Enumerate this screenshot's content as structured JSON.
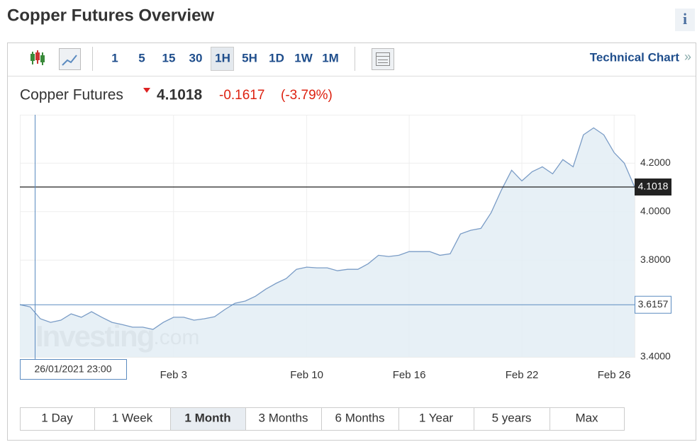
{
  "header": {
    "title": "Copper Futures Overview",
    "info_icon": "i"
  },
  "toolbar": {
    "intervals": [
      "1",
      "5",
      "15",
      "30",
      "1H",
      "5H",
      "1D",
      "1W",
      "1M"
    ],
    "active_interval": "1H",
    "technical_link": "Technical Chart"
  },
  "quote": {
    "name": "Copper Futures",
    "last": "4.1018",
    "change": "-0.1617",
    "change_pct": "(-3.79%)"
  },
  "chart_data": {
    "type": "line",
    "color": "#7a9cc6",
    "area_color": "#e3edf5",
    "categories": [
      null,
      null,
      null,
      null,
      null,
      null,
      null,
      null,
      null,
      null,
      null,
      null,
      null,
      null,
      null,
      "Feb 3",
      null,
      null,
      null,
      null,
      null,
      null,
      null,
      null,
      null,
      null,
      null,
      null,
      "Feb 10",
      null,
      null,
      null,
      null,
      null,
      null,
      null,
      null,
      null,
      "Feb 16",
      null,
      null,
      null,
      null,
      null,
      null,
      null,
      null,
      null,
      null,
      "Feb 22",
      null,
      null,
      null,
      null,
      null,
      null,
      null,
      null,
      "Feb 26",
      null,
      null
    ],
    "values": [
      3.616,
      3.607,
      3.558,
      3.543,
      3.552,
      3.578,
      3.564,
      3.587,
      3.564,
      3.543,
      3.534,
      3.523,
      3.523,
      3.514,
      3.543,
      3.564,
      3.564,
      3.552,
      3.558,
      3.566,
      3.596,
      3.622,
      3.631,
      3.651,
      3.68,
      3.704,
      3.724,
      3.762,
      3.771,
      3.768,
      3.768,
      3.756,
      3.762,
      3.762,
      3.785,
      3.82,
      3.815,
      3.82,
      3.835,
      3.835,
      3.835,
      3.82,
      3.826,
      3.908,
      3.923,
      3.931,
      3.996,
      4.089,
      4.171,
      4.127,
      4.165,
      4.185,
      4.156,
      4.215,
      4.185,
      4.317,
      4.346,
      4.317,
      4.244,
      4.2,
      4.102
    ],
    "ylim": [
      3.4,
      4.4
    ],
    "yticks": [
      {
        "value": 3.4,
        "label": "3.4000"
      },
      {
        "value": 3.8,
        "label": "3.8000"
      },
      {
        "value": 4.0,
        "label": "4.0000"
      },
      {
        "value": 4.2,
        "label": "4.2000"
      }
    ],
    "grid": true,
    "last_price_line": 4.1018,
    "crosshair": {
      "y": 3.6157,
      "x_label": "26/01/2021 23:00"
    },
    "watermark": {
      "brand": "Investing",
      "suffix": ".com"
    }
  },
  "ranges": {
    "buttons": [
      "1 Day",
      "1 Week",
      "1 Month",
      "3 Months",
      "6 Months",
      "1 Year",
      "5 years",
      "Max"
    ],
    "active": "1 Month"
  }
}
